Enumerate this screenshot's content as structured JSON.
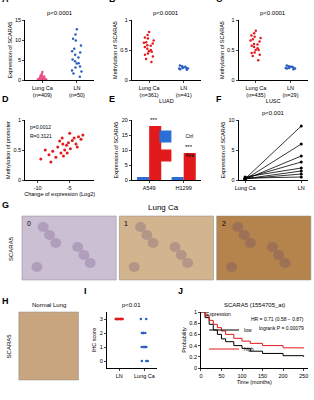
{
  "chart_data": [
    {
      "label": "A",
      "type": "strip",
      "title": "p<0.0001",
      "y_label": "Expression of SCARA5",
      "categories": [
        "Lung Ca\n(n=409)",
        "LN\n(n=50)"
      ],
      "colors": [
        "#e8508a",
        "#2b5fbf"
      ],
      "values": [
        [
          0.1,
          0.2,
          0.3,
          0.5,
          0.8,
          0.2,
          0.4,
          1.0,
          1.5,
          0.1,
          0.3,
          0.6,
          2.0,
          0.2,
          0.9,
          0.4,
          0.1,
          0.7,
          1.2,
          0.3
        ],
        [
          0.8,
          2.1,
          3.4,
          4.2,
          5.1,
          6.3,
          7.8,
          8.6,
          9.9,
          11.4,
          12.7,
          3.1,
          5.6,
          2.4,
          6.9,
          4.7,
          7.2,
          10.3,
          1.6,
          4.1
        ]
      ],
      "ylim": [
        0,
        15
      ],
      "yticks": [
        0,
        5,
        10,
        15
      ],
      "grid": false
    },
    {
      "label": "B",
      "type": "strip",
      "title": "p<0.0001",
      "y_label": "Methylation of SCARA5",
      "x_label": "LUAD",
      "categories": [
        "Lung Ca\n(n=361)",
        "LN\n(n=41)"
      ],
      "colors": [
        "#e31a1c",
        "#2b5fbf"
      ],
      "values": [
        [
          0.35,
          0.48,
          0.62,
          0.55,
          0.71,
          0.44,
          0.58,
          0.66,
          0.39,
          0.52,
          0.75,
          0.61,
          0.47,
          0.69,
          0.57,
          0.42,
          0.63,
          0.5,
          0.8,
          0.3
        ],
        [
          0.18,
          0.2,
          0.22,
          0.19,
          0.21,
          0.17,
          0.23,
          0.2,
          0.19,
          0.24
        ]
      ],
      "ylim": [
        0,
        1
      ],
      "yticks": [
        0,
        0.5,
        1
      ],
      "grid": false
    },
    {
      "label": "C",
      "type": "strip",
      "title": "p<0.0001",
      "y_label": "Methylation of SCARA5",
      "x_label": "LUSC",
      "categories": [
        "Lung Ca\n(n=435)",
        "LN\n(n=29)"
      ],
      "colors": [
        "#e31a1c",
        "#2b5fbf"
      ],
      "values": [
        [
          0.4,
          0.55,
          0.68,
          0.5,
          0.74,
          0.46,
          0.6,
          0.7,
          0.42,
          0.57,
          0.78,
          0.64,
          0.5,
          0.72,
          0.59,
          0.45,
          0.66,
          0.53,
          0.82,
          0.33
        ],
        [
          0.2,
          0.22,
          0.19,
          0.23,
          0.21,
          0.18,
          0.24,
          0.2,
          0.22,
          0.19
        ]
      ],
      "ylim": [
        0,
        1
      ],
      "yticks": [
        0,
        0.5,
        1
      ],
      "grid": false
    },
    {
      "label": "D",
      "type": "scatter",
      "x_label": "Change of expression (Log2)",
      "y_label": "Methylation of promoter",
      "color": "#e31a1c",
      "legend": "upper left",
      "annotations": [
        {
          "text": "p=0.0012"
        },
        {
          "text": "R=0.3121"
        }
      ],
      "x": [
        -9.5,
        -8.2,
        -7.6,
        -7.1,
        -6.8,
        -6.3,
        -6.0,
        -5.7,
        -5.4,
        -5.1,
        -4.8,
        -4.5,
        -4.2,
        -3.9,
        -3.5,
        -3.1,
        -2.8,
        -7.9,
        -6.5,
        -5.9,
        -4.9,
        -3.7,
        -8.8,
        -6.1,
        -5.3
      ],
      "values": [
        0.35,
        0.42,
        0.48,
        0.38,
        0.55,
        0.45,
        0.6,
        0.5,
        0.58,
        0.62,
        0.52,
        0.66,
        0.7,
        0.6,
        0.72,
        0.68,
        0.75,
        0.3,
        0.65,
        0.4,
        0.78,
        0.55,
        0.5,
        0.7,
        0.45
      ],
      "xlim": [
        -12,
        -1
      ],
      "xticks": [
        -10,
        -5
      ],
      "ylim": [
        0,
        1
      ],
      "yticks": [
        0,
        0.5,
        1
      ],
      "grid": false
    },
    {
      "label": "E",
      "type": "bar",
      "y_label": "Expression of SCARA5",
      "categories": [
        "A549",
        "H1299"
      ],
      "series": [
        {
          "name": "Ctrl",
          "color": "#2b6fd6",
          "values": [
            1,
            1
          ]
        },
        {
          "name": "Aza",
          "color": "#e31a1c",
          "values": [
            18,
            9
          ]
        }
      ],
      "annotations": [
        {
          "text": "***",
          "x": "A549",
          "y": 18.5
        },
        {
          "text": "***",
          "x": "H1299",
          "y": 9.5
        }
      ],
      "legend": "upper right",
      "ylim": [
        0,
        20
      ],
      "yticks": [
        0,
        5,
        10,
        15,
        20
      ],
      "grid": false
    },
    {
      "label": "F",
      "type": "paired",
      "title": "p<0.001",
      "y_label": "Expression of SCARA5",
      "color": "#000000",
      "categories": [
        "Lung Ca",
        "LN"
      ],
      "series": [
        {
          "values": [
            0.2,
            1
          ]
        },
        {
          "values": [
            0.3,
            3
          ]
        },
        {
          "values": [
            0.1,
            6
          ]
        },
        {
          "values": [
            0.2,
            9
          ]
        },
        {
          "values": [
            0.5,
            2
          ]
        },
        {
          "values": [
            0.1,
            4
          ]
        },
        {
          "values": [
            0.3,
            0.5
          ]
        },
        {
          "values": [
            0.2,
            1.5
          ]
        }
      ],
      "ylim": [
        0,
        10
      ],
      "yticks": [
        0,
        5,
        10
      ],
      "grid": false
    },
    {
      "label": "I",
      "type": "strip",
      "title": "p<0.01",
      "y_label": "IHC score",
      "categories": [
        "LN",
        "Lung Ca"
      ],
      "colors": [
        "#e31a1c",
        "#2b5fbf"
      ],
      "values": [
        [
          3,
          3,
          3,
          3,
          3,
          3,
          3,
          3,
          3,
          3,
          3,
          3
        ],
        [
          3,
          3,
          2,
          2,
          2,
          1,
          1,
          1,
          1,
          0,
          0,
          0,
          2,
          1
        ]
      ],
      "ylim": [
        -0.5,
        3.5
      ],
      "yticks": [
        0,
        1,
        2,
        3
      ],
      "grid": false
    },
    {
      "label": "J",
      "type": "line",
      "title": "SCARA5 (1554705_at)",
      "x_label": "Time (months)",
      "y_label": "Probability",
      "line_style": "step",
      "legend": "lower left",
      "legend_title": "Expression",
      "annotations": [
        {
          "text": "HR = 0.71 (0.58 − 0.87)"
        },
        {
          "text": "logrank P = 0.00079"
        }
      ],
      "x": [
        0,
        10,
        20,
        30,
        40,
        50,
        60,
        80,
        100,
        120,
        150,
        200,
        250
      ],
      "series": [
        {
          "name": "low",
          "color": "#000000",
          "values": [
            1,
            0.9,
            0.78,
            0.68,
            0.6,
            0.52,
            0.47,
            0.4,
            0.35,
            0.3,
            0.26,
            0.22,
            0.2
          ]
        },
        {
          "name": "high",
          "color": "#e31a1c",
          "values": [
            1,
            0.93,
            0.85,
            0.78,
            0.72,
            0.66,
            0.6,
            0.53,
            0.48,
            0.44,
            0.4,
            0.36,
            0.35
          ]
        }
      ],
      "xlim": [
        0,
        260
      ],
      "xticks": [
        0,
        50,
        100,
        150,
        200,
        250
      ],
      "ylim": [
        0,
        1
      ],
      "yticks": [
        0,
        0.2,
        0.4,
        0.6,
        0.8,
        1
      ],
      "grid": false
    }
  ],
  "images": [
    {
      "label": "G",
      "title": "Lung Ca",
      "stain": "SCARA5",
      "panels": [
        "0",
        "1",
        "2"
      ]
    },
    {
      "label": "H",
      "title": "Normal Lung",
      "stain": "SCARA5"
    }
  ]
}
